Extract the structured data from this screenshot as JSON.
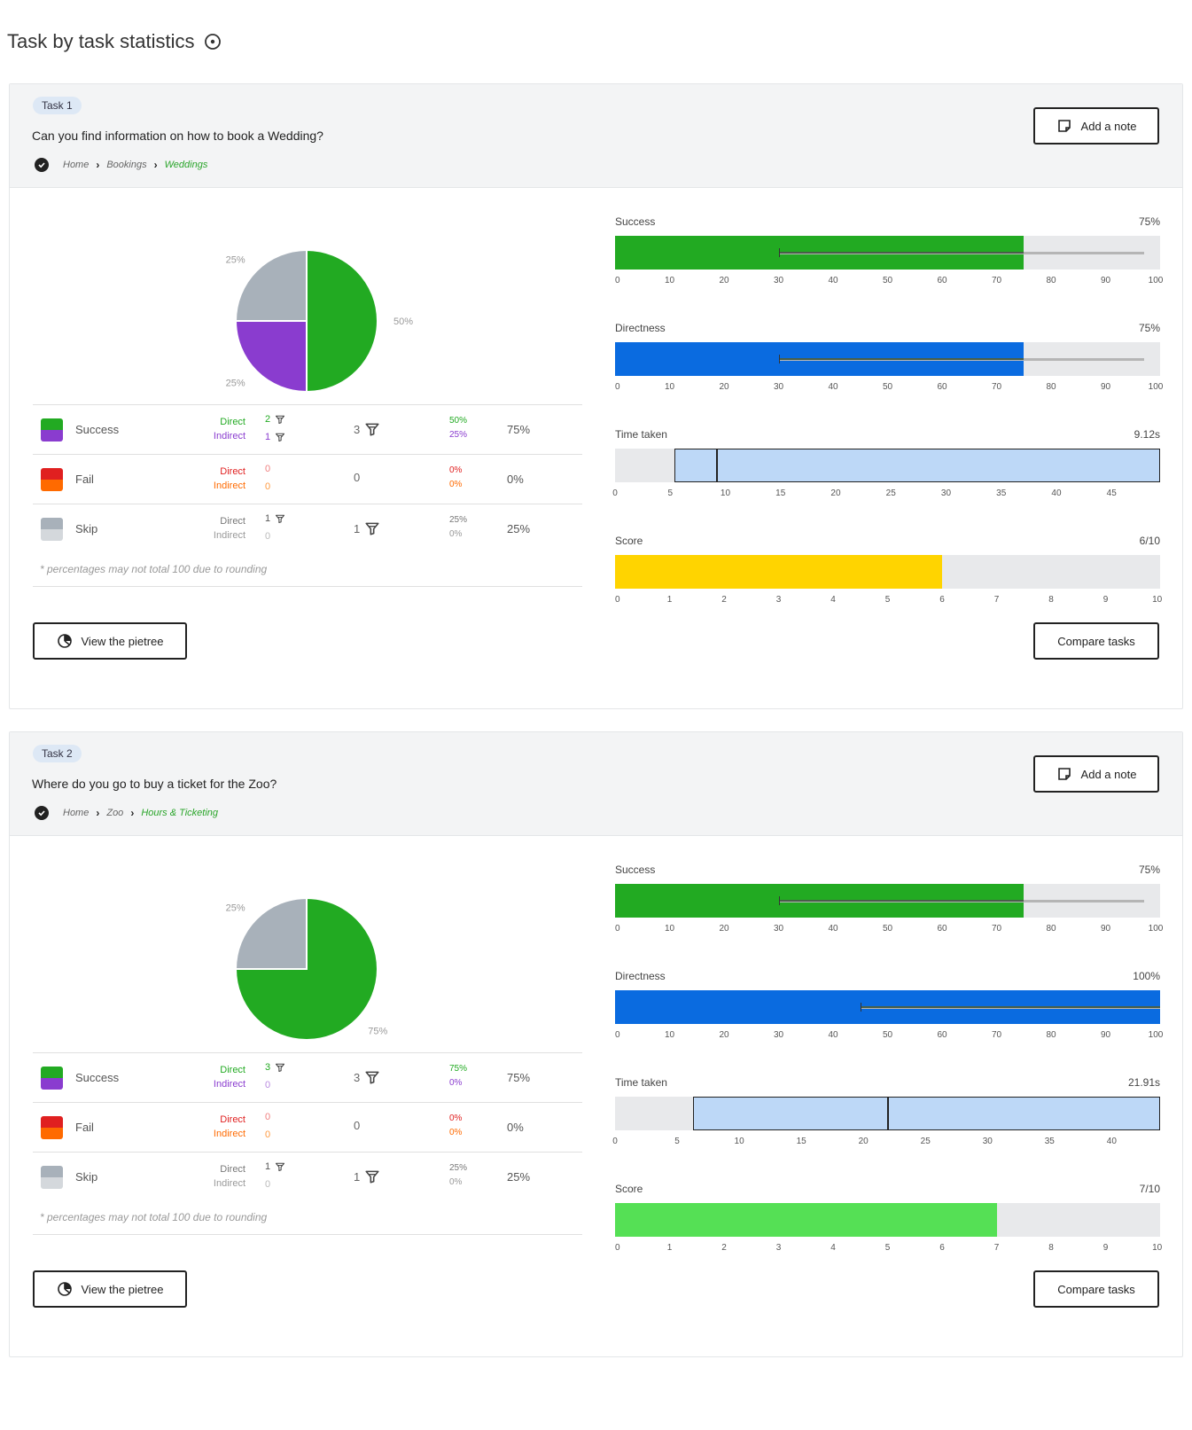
{
  "page": {
    "title": "Task by task statistics"
  },
  "tasks": [
    {
      "badge": "Task 1",
      "question": "Can you find information on how to book a Wedding?",
      "breadcrumb": [
        "Home",
        "Bookings",
        "Weddings"
      ],
      "add_note_label": "Add a note",
      "view_pietree_label": "View the pietree",
      "compare_label": "Compare tasks",
      "pie": {
        "slices": [
          {
            "name": "Success Direct",
            "value": 50,
            "color": "#22aa22",
            "label": "50%"
          },
          {
            "name": "Success Indirect",
            "value": 25,
            "color": "#8a3ccf",
            "label": "25%"
          },
          {
            "name": "Skip",
            "value": 25,
            "color": "#a8b1ba",
            "label": "25%"
          }
        ]
      },
      "rows": [
        {
          "label": "Success",
          "colors": [
            "#22aa22",
            "#8a3ccf"
          ],
          "direct_label": "Direct",
          "indirect_label": "Indirect",
          "direct_color": "#22aa22",
          "indirect_color": "#8a3ccf",
          "direct_count": "2",
          "indirect_count": "1",
          "direct_filter": true,
          "indirect_filter": true,
          "total": "3",
          "total_filter": true,
          "direct_pct": "50%",
          "indirect_pct": "25%",
          "direct_pct_color": "#22aa22",
          "indirect_pct_color": "#8a3ccf",
          "count_color": "#22aa22",
          "count2_color": "#8a3ccf",
          "overall": "75%"
        },
        {
          "label": "Fail",
          "colors": [
            "#e02020",
            "#ff6a00"
          ],
          "direct_label": "Direct",
          "indirect_label": "Indirect",
          "direct_color": "#e02020",
          "indirect_color": "#ff6a00",
          "direct_count": "0",
          "indirect_count": "0",
          "direct_filter": false,
          "indirect_filter": false,
          "total": "0",
          "total_filter": false,
          "direct_pct": "0%",
          "indirect_pct": "0%",
          "direct_pct_color": "#e02020",
          "indirect_pct_color": "#ff6a00",
          "count_color": "#f08080",
          "count2_color": "#ff9a40",
          "overall": "0%"
        },
        {
          "label": "Skip",
          "colors": [
            "#a8b1ba",
            "#d4d8dc"
          ],
          "direct_label": "Direct",
          "indirect_label": "Indirect",
          "direct_color": "#777",
          "indirect_color": "#999",
          "direct_count": "1",
          "indirect_count": "0",
          "direct_filter": true,
          "indirect_filter": false,
          "total": "1",
          "total_filter": true,
          "direct_pct": "25%",
          "indirect_pct": "0%",
          "direct_pct_color": "#777",
          "indirect_pct_color": "#999",
          "count_color": "#555",
          "count2_color": "#bbb",
          "overall": "25%"
        }
      ],
      "footnote": "* percentages may not total 100 due to rounding",
      "metrics": {
        "success": {
          "label": "Success",
          "value": "75%",
          "fill_pct": 75,
          "color": "#22aa22",
          "bench_from": 30,
          "bench_to": 97,
          "ticks": [
            "0",
            "10",
            "20",
            "30",
            "40",
            "50",
            "60",
            "70",
            "80",
            "90",
            "100"
          ],
          "max": 100
        },
        "directness": {
          "label": "Directness",
          "value": "75%",
          "fill_pct": 75,
          "color": "#0a6be0",
          "bench_from": 30,
          "bench_to": 97,
          "ticks": [
            "0",
            "10",
            "20",
            "30",
            "40",
            "50",
            "60",
            "70",
            "80",
            "90",
            "100"
          ],
          "max": 100
        },
        "time": {
          "label": "Time taken",
          "value": "9.12s",
          "box_from": 5.4,
          "median": 9.12,
          "max": 49.4,
          "ticks": [
            "0",
            "5",
            "10",
            "15",
            "20",
            "25",
            "30",
            "35",
            "40",
            "45"
          ],
          "tick_step": 5
        },
        "score": {
          "label": "Score",
          "value": "6/10",
          "fill_pct": 60,
          "color": "#ffd400",
          "ticks": [
            "0",
            "1",
            "2",
            "3",
            "4",
            "5",
            "6",
            "7",
            "8",
            "9",
            "10"
          ],
          "max": 10
        }
      }
    },
    {
      "badge": "Task 2",
      "question": "Where do you go to buy a ticket for the Zoo?",
      "breadcrumb": [
        "Home",
        "Zoo",
        "Hours & Ticketing"
      ],
      "add_note_label": "Add a note",
      "view_pietree_label": "View the pietree",
      "compare_label": "Compare tasks",
      "pie": {
        "slices": [
          {
            "name": "Success Direct",
            "value": 75,
            "color": "#22aa22",
            "label": "75%"
          },
          {
            "name": "Skip",
            "value": 25,
            "color": "#a8b1ba",
            "label": "25%"
          }
        ]
      },
      "rows": [
        {
          "label": "Success",
          "colors": [
            "#22aa22",
            "#8a3ccf"
          ],
          "direct_label": "Direct",
          "indirect_label": "Indirect",
          "direct_color": "#22aa22",
          "indirect_color": "#8a3ccf",
          "direct_count": "3",
          "indirect_count": "0",
          "direct_filter": true,
          "indirect_filter": false,
          "total": "3",
          "total_filter": true,
          "direct_pct": "75%",
          "indirect_pct": "0%",
          "direct_pct_color": "#22aa22",
          "indirect_pct_color": "#8a3ccf",
          "count_color": "#22aa22",
          "count2_color": "#b98ae0",
          "overall": "75%"
        },
        {
          "label": "Fail",
          "colors": [
            "#e02020",
            "#ff6a00"
          ],
          "direct_label": "Direct",
          "indirect_label": "Indirect",
          "direct_color": "#e02020",
          "indirect_color": "#ff6a00",
          "direct_count": "0",
          "indirect_count": "0",
          "direct_filter": false,
          "indirect_filter": false,
          "total": "0",
          "total_filter": false,
          "direct_pct": "0%",
          "indirect_pct": "0%",
          "direct_pct_color": "#e02020",
          "indirect_pct_color": "#ff6a00",
          "count_color": "#f08080",
          "count2_color": "#ff9a40",
          "overall": "0%"
        },
        {
          "label": "Skip",
          "colors": [
            "#a8b1ba",
            "#d4d8dc"
          ],
          "direct_label": "Direct",
          "indirect_label": "Indirect",
          "direct_color": "#777",
          "indirect_color": "#999",
          "direct_count": "1",
          "indirect_count": "0",
          "direct_filter": true,
          "indirect_filter": false,
          "total": "1",
          "total_filter": true,
          "direct_pct": "25%",
          "indirect_pct": "0%",
          "direct_pct_color": "#777",
          "indirect_pct_color": "#999",
          "count_color": "#555",
          "count2_color": "#bbb",
          "overall": "25%"
        }
      ],
      "footnote": "* percentages may not total 100 due to rounding",
      "metrics": {
        "success": {
          "label": "Success",
          "value": "75%",
          "fill_pct": 75,
          "color": "#22aa22",
          "bench_from": 30,
          "bench_to": 97,
          "ticks": [
            "0",
            "10",
            "20",
            "30",
            "40",
            "50",
            "60",
            "70",
            "80",
            "90",
            "100"
          ],
          "max": 100
        },
        "directness": {
          "label": "Directness",
          "value": "100%",
          "fill_pct": 100,
          "color": "#0a6be0",
          "bench_from": 45,
          "bench_to": 100,
          "ticks": [
            "0",
            "10",
            "20",
            "30",
            "40",
            "50",
            "60",
            "70",
            "80",
            "90",
            "100"
          ],
          "max": 100
        },
        "time": {
          "label": "Time taken",
          "value": "21.91s",
          "box_from": 6.3,
          "median": 21.91,
          "max": 43.9,
          "ticks": [
            "0",
            "5",
            "10",
            "15",
            "20",
            "25",
            "30",
            "35",
            "40"
          ],
          "tick_step": 5
        },
        "score": {
          "label": "Score",
          "value": "7/10",
          "fill_pct": 70,
          "color": "#55e055",
          "ticks": [
            "0",
            "1",
            "2",
            "3",
            "4",
            "5",
            "6",
            "7",
            "8",
            "9",
            "10"
          ],
          "max": 10
        }
      }
    }
  ]
}
